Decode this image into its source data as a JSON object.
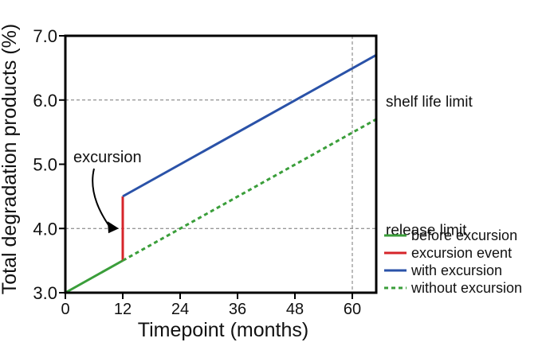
{
  "chart_data": {
    "type": "line",
    "xlabel": "Timepoint (months)",
    "ylabel": "Total degradation products (%)",
    "xlim": [
      0,
      65
    ],
    "ylim": [
      3.0,
      7.0
    ],
    "xticks": [
      0,
      12,
      24,
      36,
      48,
      60
    ],
    "xtick_labels": [
      "0",
      "12",
      "24",
      "36",
      "48",
      "60"
    ],
    "yticks": [
      3.0,
      4.0,
      5.0,
      6.0,
      7.0
    ],
    "ytick_labels": [
      "3.0",
      "4.0",
      "5.0",
      "6.0",
      "7.0"
    ],
    "grid": "dashed reference lines only",
    "reference_lines": [
      {
        "axis": "y",
        "value": 6.0,
        "label": "shelf life limit"
      },
      {
        "axis": "y",
        "value": 4.0,
        "label": "release limit"
      },
      {
        "axis": "x",
        "value": 60,
        "label": ""
      }
    ],
    "annotation": {
      "text": "excursion",
      "points_to": {
        "x": 12,
        "y": 4.0
      }
    },
    "series": [
      {
        "name": "before excursion",
        "color": "#3a9e3a",
        "style": "solid",
        "points": [
          [
            0,
            3.0
          ],
          [
            12,
            3.5
          ]
        ]
      },
      {
        "name": "excursion event",
        "color": "#d6242a",
        "style": "solid",
        "points": [
          [
            12,
            3.5
          ],
          [
            12,
            4.5
          ]
        ]
      },
      {
        "name": "with excursion",
        "color": "#2a52a8",
        "style": "solid",
        "points": [
          [
            12,
            4.5
          ],
          [
            65,
            6.7
          ]
        ]
      },
      {
        "name": "without excursion",
        "color": "#3a9e3a",
        "style": "dashed",
        "points": [
          [
            12,
            3.5
          ],
          [
            65,
            5.7
          ]
        ]
      }
    ],
    "legend": "bottom-right, outside plot"
  }
}
